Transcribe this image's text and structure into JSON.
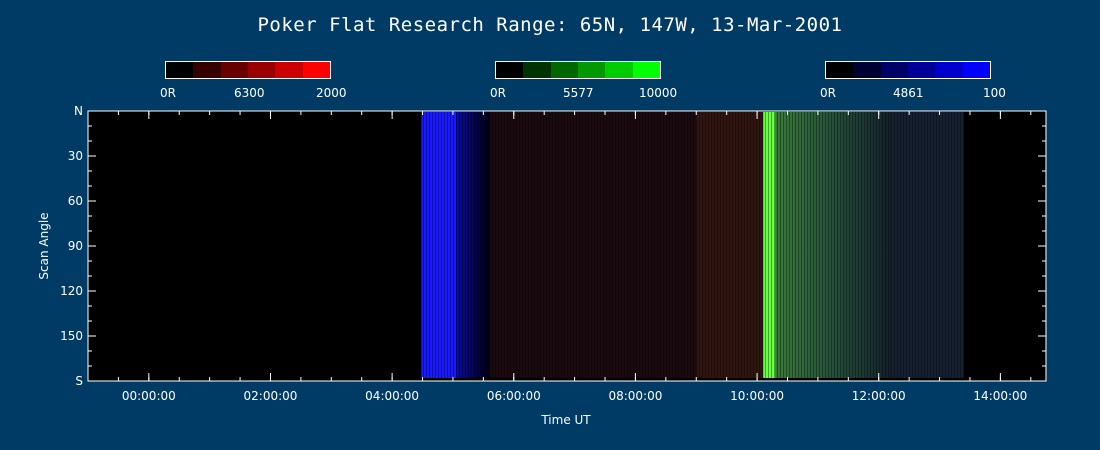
{
  "title": "Poker Flat Research Range: 65N, 147W, 13-Mar-2001",
  "colorbars": [
    {
      "name": "6300",
      "min_label": "0R",
      "max_label": "2000",
      "colors": [
        "#000000",
        "#340000",
        "#680000",
        "#9a0000",
        "#cd0000",
        "#ff0000"
      ]
    },
    {
      "name": "5577",
      "min_label": "0R",
      "max_label": "10000",
      "colors": [
        "#000000",
        "#003300",
        "#006600",
        "#009900",
        "#00cc00",
        "#00ff00"
      ]
    },
    {
      "name": "4861",
      "min_label": "0R",
      "max_label": "100",
      "colors": [
        "#000000",
        "#000033",
        "#000066",
        "#000099",
        "#0000cc",
        "#0000ff"
      ]
    }
  ],
  "chart_data": {
    "type": "heatmap",
    "xlabel": "Time UT",
    "ylabel": "Scan Angle",
    "x_ticks": [
      "00:00:00",
      "02:00:00",
      "04:00:00",
      "06:00:00",
      "08:00:00",
      "10:00:00",
      "12:00:00",
      "14:00:00"
    ],
    "y_ticks": [
      "N",
      "30",
      "60",
      "90",
      "120",
      "150",
      "S"
    ],
    "xlim_hours": [
      -1.0,
      14.75
    ],
    "ylim_deg": [
      0,
      180
    ],
    "regions": [
      {
        "name": "no-data",
        "x_start_h": -1.0,
        "x_end_h": 4.48,
        "color": "#000000"
      },
      {
        "name": "twilight-blue",
        "x_start_h": 4.48,
        "x_end_h": 5.05,
        "color": "#1a1aff"
      },
      {
        "name": "twilight-fade",
        "x_start_h": 5.05,
        "x_end_h": 5.6,
        "color": "#0a0a60"
      },
      {
        "name": "faint-red-aurora",
        "x_start_h": 5.6,
        "x_end_h": 10.1,
        "color": "#1a0a10"
      },
      {
        "name": "red-glow",
        "x_start_h": 9.0,
        "x_end_h": 10.1,
        "color": "#3a1a12"
      },
      {
        "name": "bright-green-arc",
        "x_start_h": 10.1,
        "x_end_h": 10.3,
        "color": "#66ff44"
      },
      {
        "name": "green-diffuse",
        "x_start_h": 10.3,
        "x_end_h": 12.2,
        "color": "#2a5a30"
      },
      {
        "name": "faint-late",
        "x_start_h": 12.2,
        "x_end_h": 13.4,
        "color": "#152030"
      }
    ]
  }
}
